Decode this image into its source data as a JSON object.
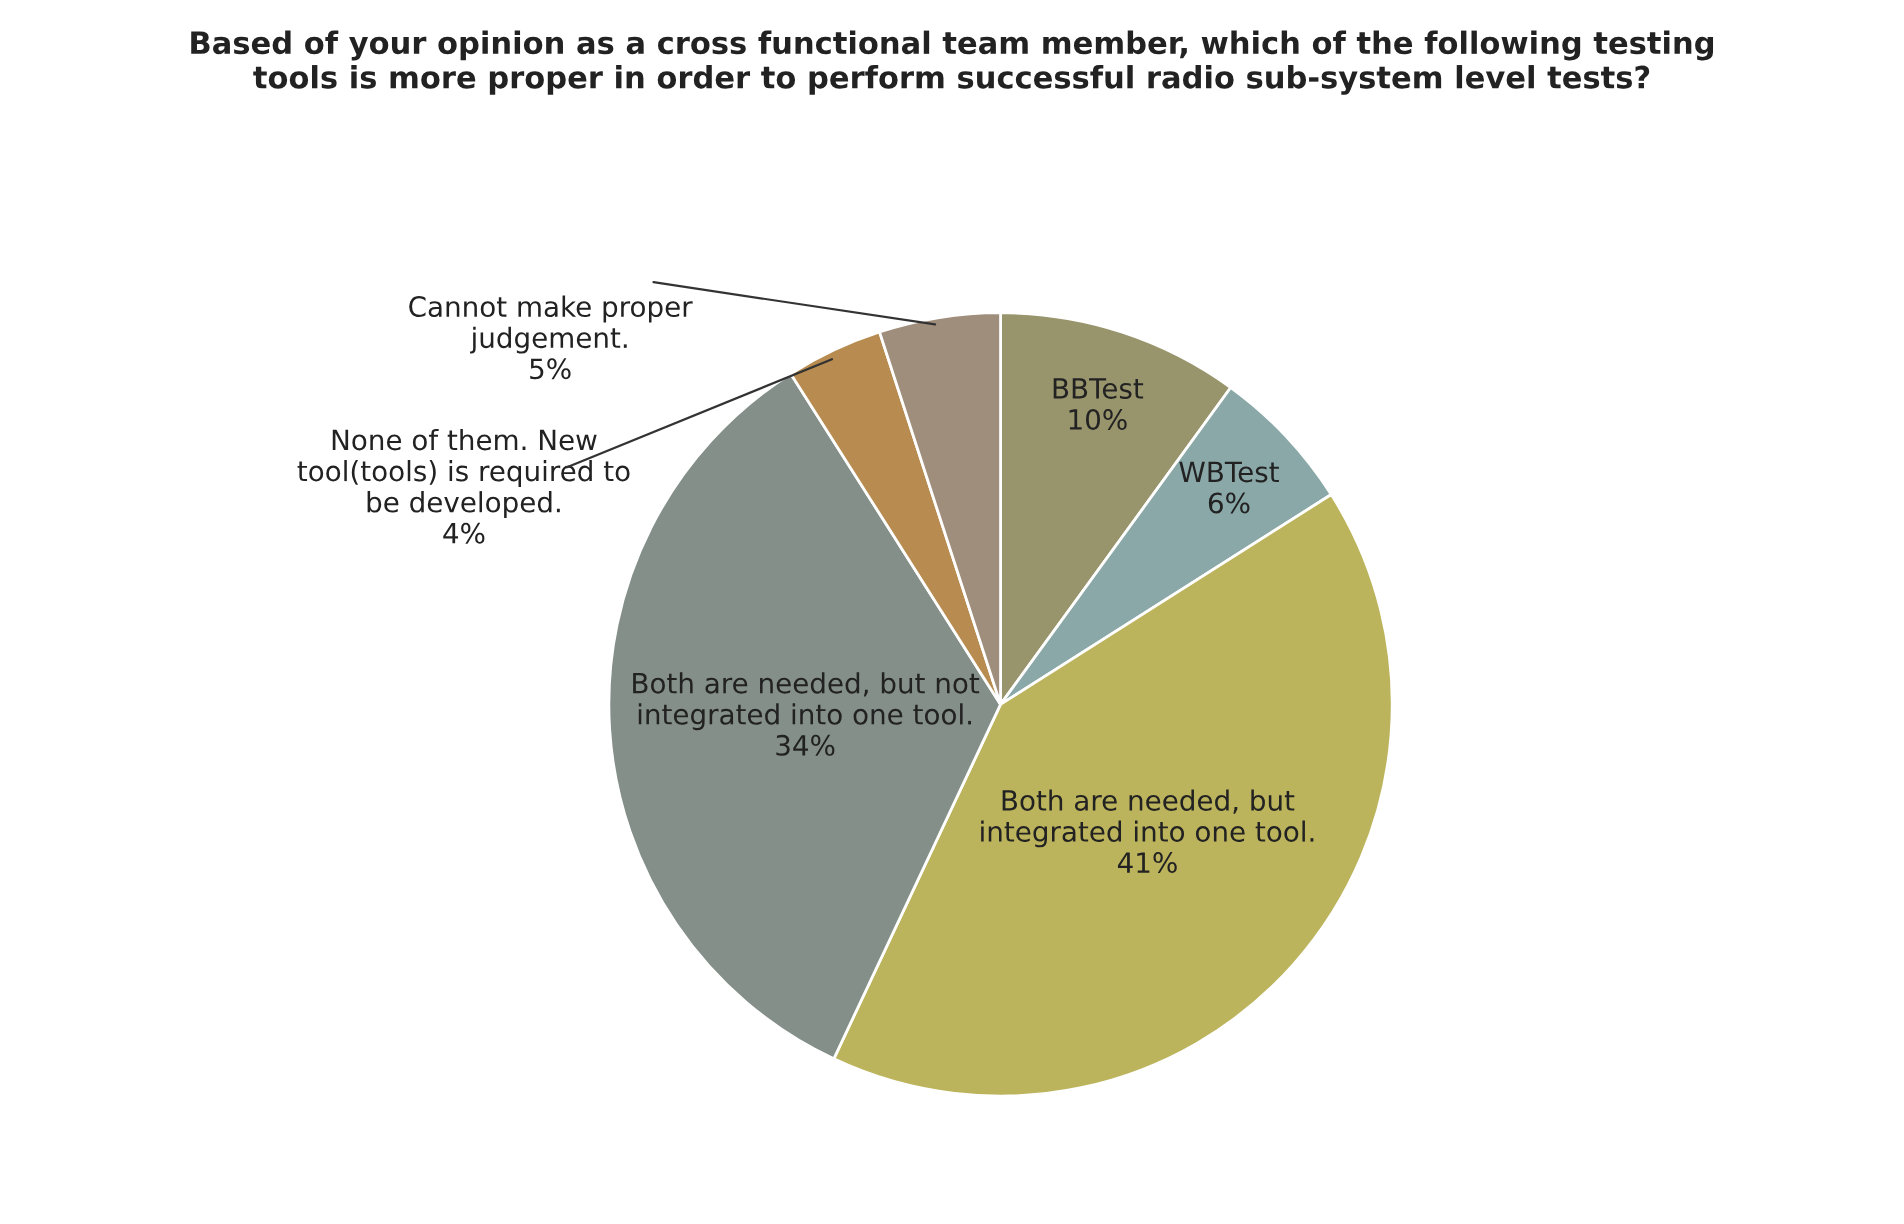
{
  "chart_data": {
    "type": "pie",
    "title": "Based of your opinion as a cross functional team member, which of the following testing\ntools is more proper in order to perform successful radio sub-system level tests?",
    "categories": [
      "BBTest",
      "WBTest",
      "Both are needed, but\nintegrated into one tool.",
      "Both are needed, but not\nintegrated into one tool.",
      "None of them. New\ntool(tools) is required to\nbe developed.",
      "Cannot make proper\njudgement."
    ],
    "values": [
      10,
      6,
      41,
      34,
      4,
      5
    ],
    "value_labels": [
      "10%",
      "6%",
      "41%",
      "34%",
      "4%",
      "5%"
    ],
    "colors": [
      "#98946c",
      "#8aa8a8",
      "#bcb45c",
      "#848f89",
      "#b88c50",
      "#a08e7c"
    ],
    "legend": false
  }
}
